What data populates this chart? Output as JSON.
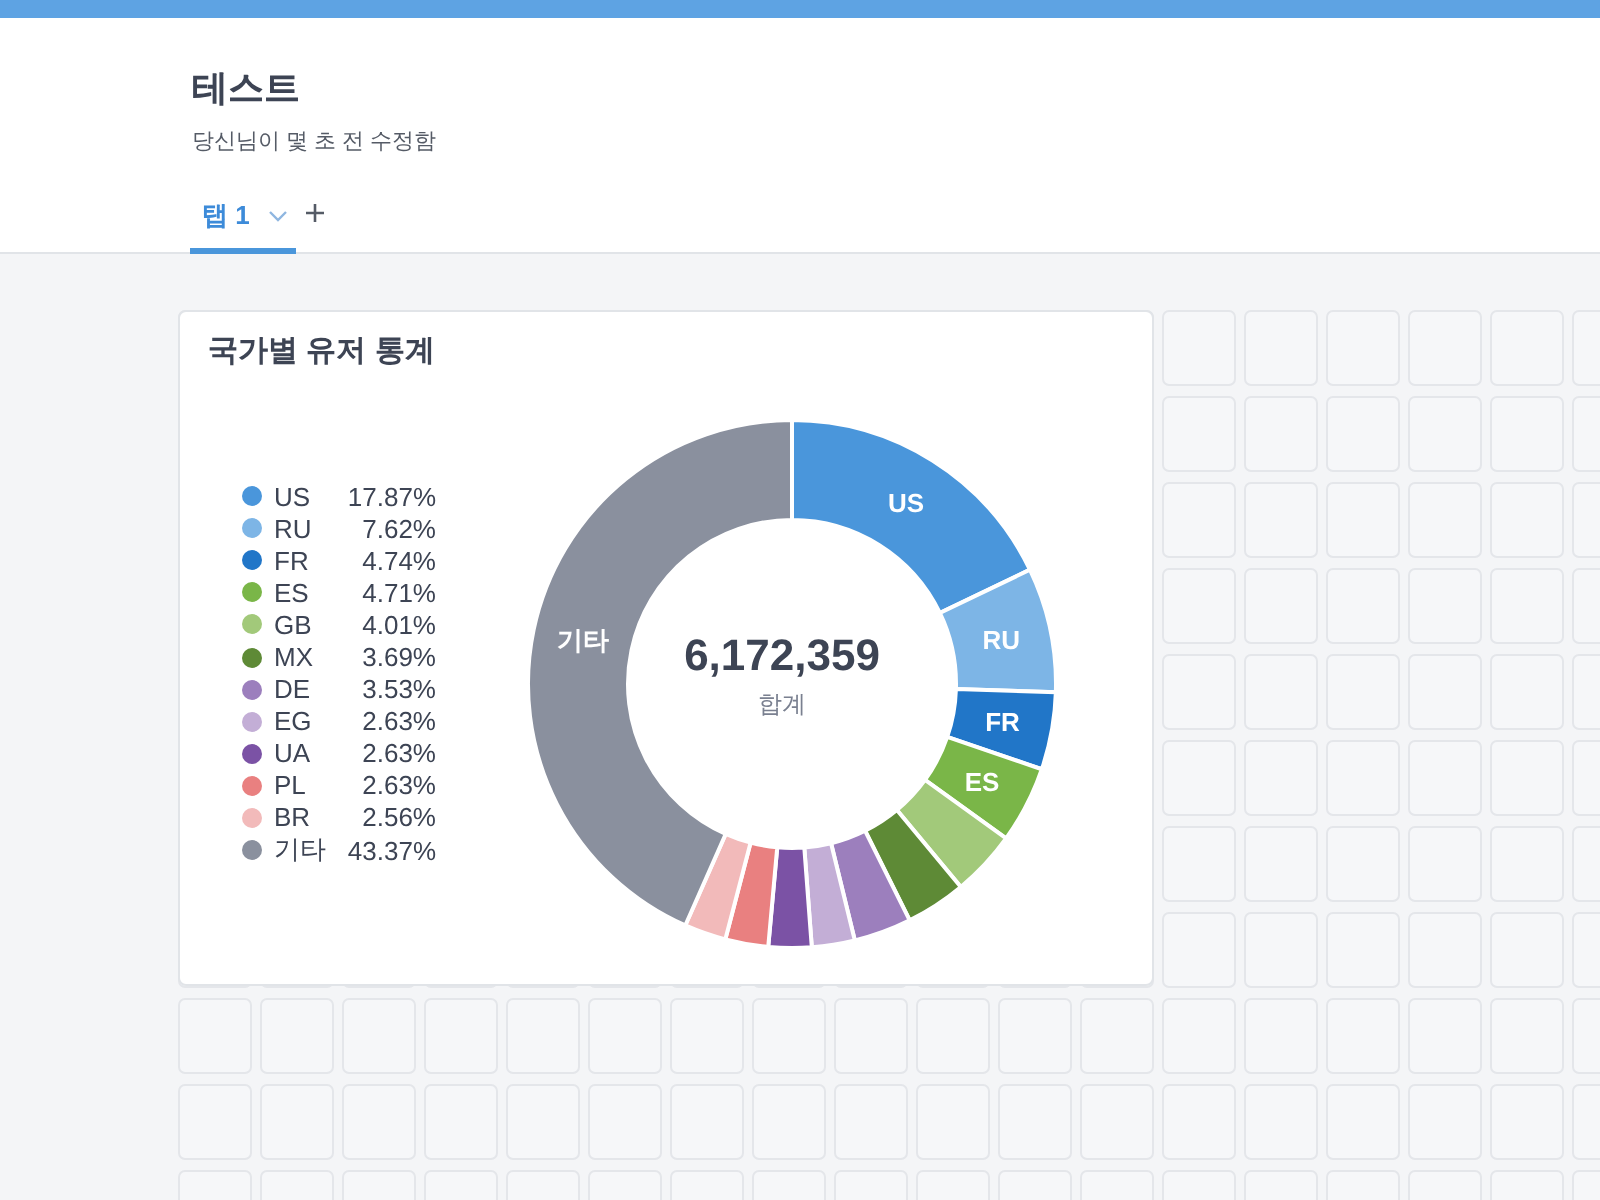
{
  "chart_data": {
    "type": "donut",
    "title": "국가별 유저 통계",
    "categories": [
      "US",
      "RU",
      "FR",
      "ES",
      "GB",
      "MX",
      "DE",
      "EG",
      "UA",
      "PL",
      "BR",
      "기타"
    ],
    "values": [
      17.87,
      7.62,
      4.74,
      4.71,
      4.01,
      3.69,
      3.53,
      2.63,
      2.63,
      2.63,
      2.56,
      43.37
    ],
    "value_labels": [
      "17.87%",
      "7.62%",
      "4.74%",
      "4.71%",
      "4.01%",
      "3.69%",
      "3.53%",
      "2.63%",
      "2.63%",
      "2.63%",
      "2.56%",
      "43.37%"
    ],
    "colors": [
      "#4a96db",
      "#7db5e6",
      "#2176c8",
      "#7ab648",
      "#a2c97a",
      "#5e8a36",
      "#9c7fbd",
      "#c3aed6",
      "#7b52a5",
      "#e98080",
      "#f2baba",
      "#8a909e"
    ],
    "legend": "left",
    "annotations": [
      "테스트",
      "당신님이 몇 초 전 수정함",
      "탭 1",
      "6,172,359",
      "합계"
    ]
  }
}
